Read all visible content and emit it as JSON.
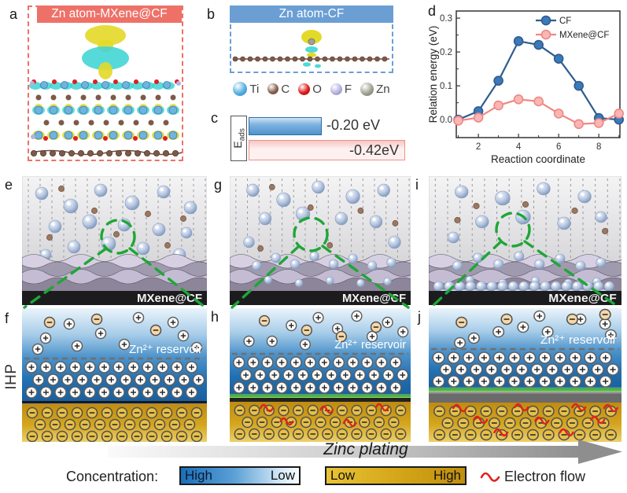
{
  "colors": {
    "salmon": "#ee7168",
    "blue_label": "#6b9fd4",
    "green_link": "#1fa637",
    "electron_red": "#e0231c",
    "cf_line": "#2e5c8f",
    "cf_marker": "#3d79b8",
    "mxene_line": "#ef8783",
    "mxene_marker": "#f9b6b4"
  },
  "panels": {
    "a": {
      "letter": "a",
      "title": "Zn atom-MXene@CF"
    },
    "b": {
      "letter": "b",
      "title": "Zn atom-CF"
    },
    "c": {
      "letter": "c",
      "axis_main": "E",
      "axis_sub": "ads",
      "bars": [
        {
          "value": "-0.20 eV"
        },
        {
          "value": "-0.42eV"
        }
      ]
    },
    "d": {
      "letter": "d"
    },
    "e": {
      "letter": "e",
      "caption": "MXene@CF",
      "stage": 1
    },
    "g": {
      "letter": "g",
      "caption": "MXene@CF",
      "stage": 2
    },
    "i": {
      "letter": "i",
      "caption": "MXene@CF",
      "stage": 3
    },
    "f": {
      "letter": "f",
      "reservoir_label": "Zn²⁺ reservoir",
      "ihp_label": "IHP",
      "stage": 1,
      "electron_flow": false,
      "zn_layer": false
    },
    "h": {
      "letter": "h",
      "reservoir_label": "Zn²⁺ reservoir",
      "stage": 2,
      "electron_flow": true,
      "zn_layer": false
    },
    "j": {
      "letter": "j",
      "reservoir_label": "Zn²⁺ reservoir",
      "stage": 3,
      "electron_flow": true,
      "zn_layer": true
    }
  },
  "atom_legend": [
    {
      "name": "Ti",
      "color": "#57b0e3",
      "dark": "#2f7fb0"
    },
    {
      "name": "C",
      "color": "#8a6450",
      "dark": "#55392c"
    },
    {
      "name": "O",
      "color": "#e01818",
      "dark": "#900c0c"
    },
    {
      "name": "F",
      "color": "#b4b2e0",
      "dark": "#807eb8"
    },
    {
      "name": "Zn",
      "color": "#a2a294",
      "dark": "#6e6e62"
    }
  ],
  "chart_data": {
    "type": "line",
    "title": "",
    "xlabel": "Reaction coordinate",
    "ylabel": "Relation energy (eV)",
    "x": [
      1,
      2,
      3,
      4,
      5,
      6,
      7,
      8,
      9
    ],
    "series": [
      {
        "name": "CF",
        "values": [
          0.0,
          0.025,
          0.115,
          0.232,
          0.221,
          0.18,
          0.1,
          0.005,
          0.0
        ]
      },
      {
        "name": "MXene@CF",
        "values": [
          -0.003,
          0.006,
          0.042,
          0.06,
          0.054,
          0.018,
          -0.013,
          -0.01,
          0.018
        ]
      }
    ],
    "xticks": [
      2,
      4,
      6,
      8
    ],
    "yticks": [
      0.0,
      0.1,
      0.2,
      0.3
    ],
    "xlim": [
      0.9,
      9.05
    ],
    "ylim": [
      -0.053,
      0.321
    ],
    "grid": false,
    "legend_position": "top-right"
  },
  "bottom": {
    "arrow_label": "Zinc plating",
    "concentration_label": "Concentration:",
    "blue_bar": {
      "left": "High",
      "right": "Low"
    },
    "gold_bar": {
      "left": "Low",
      "right": "High"
    },
    "electron_flow_label": "Electron flow"
  }
}
